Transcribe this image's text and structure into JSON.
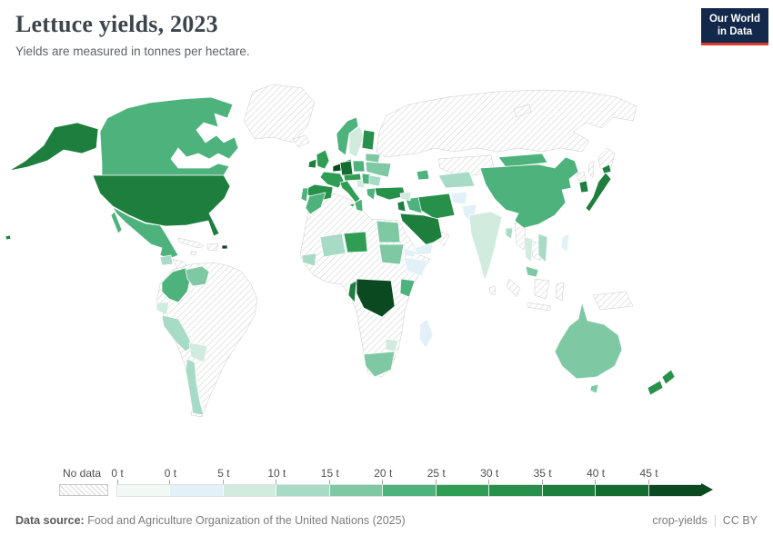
{
  "header": {
    "title": "Lettuce yields, 2023",
    "subtitle": "Yields are measured in tonnes per hectare.",
    "logo": {
      "line1": "Our World",
      "line2": "in Data",
      "bg_color": "#13294b",
      "accent_color": "#dc3a2d"
    }
  },
  "footer": {
    "source_prefix": "Data source:",
    "source_text": " Food and Agriculture Organization of the United Nations (2025)",
    "note": "crop-yields",
    "license": "CC BY"
  },
  "chart_data": {
    "type": "choropleth_map",
    "title": "Lettuce yields, 2023",
    "unit": "tonnes per hectare",
    "unit_short": "t",
    "legend": {
      "no_data_label": "No data",
      "open_ended_max": true,
      "bins": [
        {
          "label": "0 t",
          "range": "0 t",
          "color": "#f1f9f5"
        },
        {
          "label": "0 t",
          "range": "0–5 t",
          "color": "#e2f1f7"
        },
        {
          "label": "5 t",
          "range": "5–10 t",
          "color": "#d1ebdf"
        },
        {
          "label": "10 t",
          "range": "10–15 t",
          "color": "#a7dbc6"
        },
        {
          "label": "15 t",
          "range": "15–20 t",
          "color": "#7ec9a3"
        },
        {
          "label": "20 t",
          "range": "20–25 t",
          "color": "#4eb27d"
        },
        {
          "label": "25 t",
          "range": "25–30 t",
          "color": "#2f9e54"
        },
        {
          "label": "30 t",
          "range": "30–35 t",
          "color": "#27904a"
        },
        {
          "label": "35 t",
          "range": "35–40 t",
          "color": "#1d7e3e"
        },
        {
          "label": "40 t",
          "range": "40–45 t",
          "color": "#156c31"
        },
        {
          "label": "45 t",
          "range": "45+ t",
          "color": "#0b4a20"
        }
      ]
    },
    "countries": [
      {
        "id": "usa",
        "name": "United States",
        "range": "35–40 t",
        "color": "#1d7e3e"
      },
      {
        "id": "canada",
        "name": "Canada",
        "range": "20–25 t",
        "color": "#4eb27d"
      },
      {
        "id": "mexico",
        "name": "Mexico",
        "range": "20–25 t",
        "color": "#4eb27d"
      },
      {
        "id": "guatemala",
        "name": "Guatemala",
        "range": "10–15 t",
        "color": "#a7dbc6"
      },
      {
        "id": "costa-rica-panama",
        "name": "Costa Rica & Panama",
        "range": "20–25 t",
        "color": "#4eb27d"
      },
      {
        "id": "puerto-rico",
        "name": "Puerto Rico",
        "range": "45+ t",
        "color": "#0b4a20"
      },
      {
        "id": "colombia",
        "name": "Colombia",
        "range": "20–25 t",
        "color": "#4eb27d"
      },
      {
        "id": "venezuela",
        "name": "Venezuela",
        "range": "15–20 t",
        "color": "#7ec9a3"
      },
      {
        "id": "ecuador",
        "name": "Ecuador",
        "range": "5–10 t",
        "color": "#d1ebdf"
      },
      {
        "id": "peru",
        "name": "Peru",
        "range": "10–15 t",
        "color": "#a7dbc6"
      },
      {
        "id": "bolivia",
        "name": "Bolivia",
        "range": "5–10 t",
        "color": "#d1ebdf"
      },
      {
        "id": "chile",
        "name": "Chile",
        "range": "10–15 t",
        "color": "#a7dbc6"
      },
      {
        "id": "ireland",
        "name": "Ireland",
        "range": "35–40 t",
        "color": "#1d7e3e"
      },
      {
        "id": "united-kingdom",
        "name": "United Kingdom",
        "range": "25–30 t",
        "color": "#2f9e54"
      },
      {
        "id": "france",
        "name": "France",
        "range": "25–30 t",
        "color": "#2f9e54"
      },
      {
        "id": "spain",
        "name": "Spain",
        "range": "30–35 t",
        "color": "#27904a"
      },
      {
        "id": "portugal",
        "name": "Portugal",
        "range": "20–25 t",
        "color": "#4eb27d"
      },
      {
        "id": "germany",
        "name": "Germany",
        "range": "40–45 t",
        "color": "#156c31"
      },
      {
        "id": "benelux",
        "name": "Netherlands & Belgium",
        "range": "45+ t",
        "color": "#0b4a20"
      },
      {
        "id": "denmark",
        "name": "Denmark",
        "range": "25–30 t",
        "color": "#2f9e54"
      },
      {
        "id": "norway",
        "name": "Norway",
        "range": "20–25 t",
        "color": "#4eb27d"
      },
      {
        "id": "sweden",
        "name": "Sweden",
        "range": "5–10 t",
        "color": "#d1ebdf"
      },
      {
        "id": "finland",
        "name": "Finland",
        "range": "30–35 t",
        "color": "#27904a"
      },
      {
        "id": "baltics",
        "name": "Baltic states",
        "range": "10–15 t",
        "color": "#a7dbc6"
      },
      {
        "id": "poland",
        "name": "Poland",
        "range": "20–25 t",
        "color": "#4eb27d"
      },
      {
        "id": "czech-austria",
        "name": "Czechia & Austria",
        "range": "25–30 t",
        "color": "#2f9e54"
      },
      {
        "id": "italy",
        "name": "Italy",
        "range": "25–30 t",
        "color": "#2f9e54"
      },
      {
        "id": "croatia-bosnia",
        "name": "Croatia & Bosnia",
        "range": "5–10 t",
        "color": "#d1ebdf"
      },
      {
        "id": "serbia-hungary",
        "name": "Hungary & Serbia",
        "range": "20–25 t",
        "color": "#4eb27d"
      },
      {
        "id": "romania-bulgaria",
        "name": "Romania & Bulgaria",
        "range": "10–15 t",
        "color": "#a7dbc6"
      },
      {
        "id": "greece",
        "name": "Greece",
        "range": "20–25 t",
        "color": "#4eb27d"
      },
      {
        "id": "ukraine",
        "name": "Ukraine",
        "range": "15–20 t",
        "color": "#7ec9a3"
      },
      {
        "id": "belarus",
        "name": "Belarus",
        "range": "15–20 t",
        "color": "#7ec9a3"
      },
      {
        "id": "turkey",
        "name": "Turkey",
        "range": "30–35 t",
        "color": "#27904a"
      },
      {
        "id": "azerbaijan",
        "name": "Azerbaijan",
        "range": "20–25 t",
        "color": "#4eb27d"
      },
      {
        "id": "central-asia",
        "name": "Uzbekistan & Turkmenistan",
        "range": "10–15 t",
        "color": "#a7dbc6"
      },
      {
        "id": "china",
        "name": "China",
        "range": "20–25 t",
        "color": "#4eb27d"
      },
      {
        "id": "mongolia",
        "name": "Mongolia",
        "range": "20–25 t",
        "color": "#4eb27d"
      },
      {
        "id": "japan",
        "name": "Japan",
        "range": "35–40 t",
        "color": "#1d7e3e"
      },
      {
        "id": "south-korea",
        "name": "South Korea",
        "range": "35–40 t",
        "color": "#1d7e3e"
      },
      {
        "id": "india",
        "name": "India",
        "range": "5–10 t",
        "color": "#d1ebdf"
      },
      {
        "id": "pakistan",
        "name": "Pakistan",
        "range": "0–5 t",
        "color": "#e2f1f7"
      },
      {
        "id": "afghanistan",
        "name": "Afghanistan",
        "range": "0–5 t",
        "color": "#e2f1f7"
      },
      {
        "id": "bangladesh",
        "name": "Bangladesh",
        "range": "10–15 t",
        "color": "#a7dbc6"
      },
      {
        "id": "thailand",
        "name": "Thailand",
        "range": "5–10 t",
        "color": "#d1ebdf"
      },
      {
        "id": "vietnam",
        "name": "Vietnam",
        "range": "10–15 t",
        "color": "#a7dbc6"
      },
      {
        "id": "malaysia",
        "name": "Malaysia",
        "range": "15–20 t",
        "color": "#7ec9a3"
      },
      {
        "id": "philippines",
        "name": "Philippines",
        "range": "0–5 t",
        "color": "#e2f1f7"
      },
      {
        "id": "iran",
        "name": "Iran",
        "range": "30–35 t",
        "color": "#27904a"
      },
      {
        "id": "iraq",
        "name": "Iraq",
        "range": "20–25 t",
        "color": "#4eb27d"
      },
      {
        "id": "syria",
        "name": "Syria",
        "range": "5–10 t",
        "color": "#d1ebdf"
      },
      {
        "id": "israel-jordan",
        "name": "Israel & Jordan",
        "range": "35–40 t",
        "color": "#1d7e3e"
      },
      {
        "id": "saudi-arabia",
        "name": "Saudi Arabia",
        "range": "35–40 t",
        "color": "#1d7e3e"
      },
      {
        "id": "yemen",
        "name": "Yemen",
        "range": "0–5 t",
        "color": "#e2f1f7"
      },
      {
        "id": "egypt",
        "name": "Egypt",
        "range": "15–20 t",
        "color": "#7ec9a3"
      },
      {
        "id": "sudan",
        "name": "Sudan",
        "range": "15–20 t",
        "color": "#7ec9a3"
      },
      {
        "id": "morocco",
        "name": "Morocco",
        "range": "20–25 t",
        "color": "#4eb27d"
      },
      {
        "id": "tunisia",
        "name": "Tunisia",
        "range": "20–25 t",
        "color": "#4eb27d"
      },
      {
        "id": "senegal-guinea",
        "name": "Senegal & Guinea",
        "range": "10–15 t",
        "color": "#a7dbc6"
      },
      {
        "id": "mali",
        "name": "Mali",
        "range": "10–15 t",
        "color": "#a7dbc6"
      },
      {
        "id": "niger",
        "name": "Niger",
        "range": "25–30 t",
        "color": "#2f9e54"
      },
      {
        "id": "ethiopia",
        "name": "Ethiopia",
        "range": "0–5 t",
        "color": "#e2f1f7"
      },
      {
        "id": "eritrea",
        "name": "Eritrea",
        "range": "0–5 t",
        "color": "#e2f1f7"
      },
      {
        "id": "kenya",
        "name": "Kenya",
        "range": "20–25 t",
        "color": "#4eb27d"
      },
      {
        "id": "dr-congo",
        "name": "Democratic Republic of Congo",
        "range": "45+ t",
        "color": "#0b4a20"
      },
      {
        "id": "congo",
        "name": "Congo",
        "range": "35–40 t",
        "color": "#1d7e3e"
      },
      {
        "id": "zimbabwe",
        "name": "Zimbabwe",
        "range": "5–10 t",
        "color": "#d1ebdf"
      },
      {
        "id": "south-africa",
        "name": "South Africa",
        "range": "15–20 t",
        "color": "#7ec9a3"
      },
      {
        "id": "madagascar",
        "name": "Madagascar",
        "range": "0–5 t",
        "color": "#e2f1f7"
      },
      {
        "id": "australia",
        "name": "Australia",
        "range": "15–20 t",
        "color": "#7ec9a3"
      },
      {
        "id": "new-zealand",
        "name": "New Zealand",
        "range": "30–35 t",
        "color": "#27904a"
      }
    ],
    "no_data_regions": [
      "Greenland",
      "Iceland",
      "Russia",
      "Kazakhstan",
      "Cuba",
      "Jamaica",
      "Hispaniola",
      "Honduras & Nicaragua",
      "Brazil",
      "Argentina",
      "Paraguay",
      "Uruguay",
      "Guyana",
      "Suriname",
      "Algeria",
      "Libya",
      "Western Sahara",
      "Mauritania",
      "Nigeria",
      "Chad",
      "Angola",
      "Zambia",
      "Tanzania",
      "Mozambique",
      "Namibia",
      "Botswana",
      "Somalia",
      "Oman",
      "North Korea",
      "Myanmar",
      "Laos & Cambodia",
      "Sri Lanka",
      "Indonesia",
      "Papua New Guinea"
    ]
  }
}
